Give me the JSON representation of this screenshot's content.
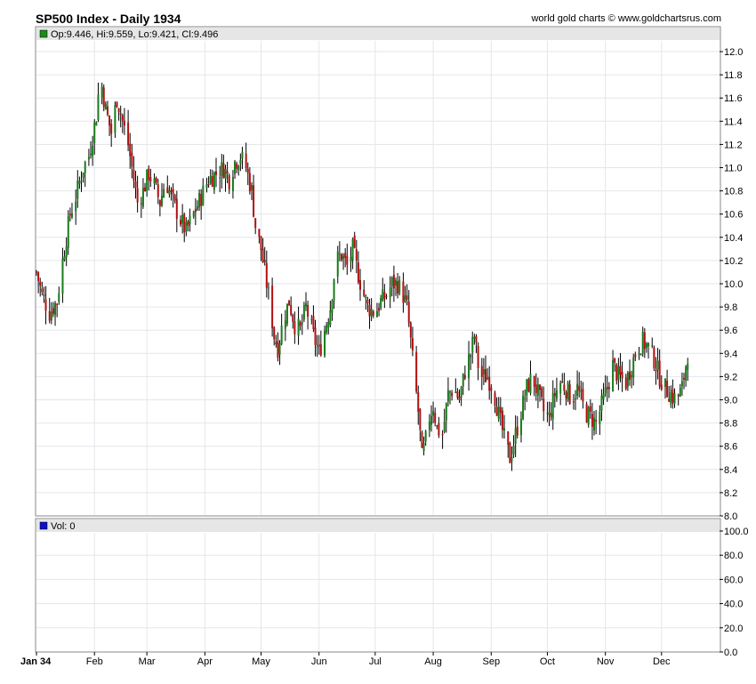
{
  "header": {
    "title": "SP500 Index - Daily 1934",
    "credit": "world gold charts © www.goldchartsrus.com"
  },
  "colors": {
    "up": "#1a7a1a",
    "down": "#b01010",
    "wick": "#000000",
    "grid": "#e3e6ea",
    "legend_bg": "#e6e6e6",
    "price_marker": "#1a8a1a",
    "vol_marker": "#1010cc"
  },
  "chart_data": [
    {
      "type": "candlestick",
      "legend": "Op:9.446, Hi:9.559, Lo:9.421, Cl:9.496",
      "ylim": [
        8.0,
        12.0
      ],
      "y_ticks": [
        "12.0",
        "11.8",
        "11.6",
        "11.4",
        "11.2",
        "11.0",
        "10.8",
        "10.6",
        "10.4",
        "10.2",
        "10.0",
        "9.8",
        "9.6",
        "9.4",
        "9.2",
        "9.0",
        "8.8",
        "8.6",
        "8.4",
        "8.2",
        "8.0"
      ],
      "x_ticks": [
        "Jan 34",
        "Feb",
        "Mar",
        "Apr",
        "May",
        "Jun",
        "Jul",
        "Aug",
        "Sep",
        "Oct",
        "Nov",
        "Dec"
      ],
      "x_tick_days": [
        1,
        32,
        60,
        91,
        121,
        152,
        182,
        213,
        244,
        274,
        305,
        335
      ],
      "x_range_days": [
        1,
        366
      ],
      "closes": [
        [
          1,
          10.1
        ],
        [
          4,
          9.9
        ],
        [
          8,
          9.75
        ],
        [
          12,
          9.85
        ],
        [
          15,
          10.2
        ],
        [
          19,
          10.6
        ],
        [
          22,
          10.75
        ],
        [
          26,
          11.0
        ],
        [
          29,
          11.1
        ],
        [
          33,
          11.45
        ],
        [
          35,
          11.8
        ],
        [
          38,
          11.5
        ],
        [
          41,
          11.3
        ],
        [
          44,
          11.6
        ],
        [
          47,
          11.4
        ],
        [
          50,
          11.2
        ],
        [
          53,
          10.9
        ],
        [
          55,
          10.7
        ],
        [
          58,
          10.8
        ],
        [
          61,
          10.95
        ],
        [
          64,
          10.85
        ],
        [
          67,
          10.7
        ],
        [
          70,
          10.9
        ],
        [
          74,
          10.7
        ],
        [
          78,
          10.55
        ],
        [
          81,
          10.45
        ],
        [
          85,
          10.6
        ],
        [
          89,
          10.75
        ],
        [
          93,
          10.9
        ],
        [
          97,
          10.95
        ],
        [
          101,
          11.0
        ],
        [
          104,
          10.9
        ],
        [
          107,
          11.05
        ],
        [
          110,
          11.1
        ],
        [
          113,
          11.0
        ],
        [
          116,
          10.8
        ],
        [
          118,
          10.5
        ],
        [
          121,
          10.3
        ],
        [
          124,
          10.0
        ],
        [
          126,
          9.8
        ],
        [
          128,
          9.55
        ],
        [
          130,
          9.45
        ],
        [
          133,
          9.7
        ],
        [
          136,
          9.85
        ],
        [
          139,
          9.65
        ],
        [
          142,
          9.6
        ],
        [
          145,
          9.8
        ],
        [
          149,
          9.55
        ],
        [
          152,
          9.4
        ],
        [
          155,
          9.6
        ],
        [
          158,
          9.8
        ],
        [
          161,
          10.2
        ],
        [
          164,
          10.25
        ],
        [
          167,
          10.15
        ],
        [
          170,
          10.3
        ],
        [
          172,
          10.15
        ],
        [
          175,
          9.95
        ],
        [
          178,
          9.8
        ],
        [
          182,
          9.75
        ],
        [
          185,
          9.85
        ],
        [
          188,
          9.9
        ],
        [
          191,
          10.0
        ],
        [
          194,
          10.0
        ],
        [
          197,
          9.9
        ],
        [
          199,
          9.8
        ],
        [
          201,
          9.5
        ],
        [
          203,
          9.2
        ],
        [
          205,
          8.9
        ],
        [
          207,
          8.5
        ],
        [
          209,
          8.65
        ],
        [
          211,
          8.85
        ],
        [
          213,
          8.95
        ],
        [
          215,
          8.75
        ],
        [
          218,
          8.7
        ],
        [
          221,
          9.05
        ],
        [
          224,
          9.1
        ],
        [
          227,
          9.0
        ],
        [
          230,
          9.25
        ],
        [
          233,
          9.4
        ],
        [
          235,
          9.55
        ],
        [
          237,
          9.3
        ],
        [
          239,
          9.2
        ],
        [
          242,
          9.2
        ],
        [
          245,
          9.1
        ],
        [
          247,
          8.95
        ],
        [
          249,
          8.8
        ],
        [
          252,
          8.6
        ],
        [
          254,
          8.5
        ],
        [
          257,
          8.7
        ],
        [
          260,
          8.9
        ],
        [
          263,
          9.1
        ],
        [
          266,
          9.2
        ],
        [
          269,
          9.05
        ],
        [
          272,
          8.9
        ],
        [
          275,
          8.85
        ],
        [
          278,
          9.05
        ],
        [
          281,
          9.15
        ],
        [
          284,
          9.1
        ],
        [
          287,
          9.0
        ],
        [
          290,
          9.1
        ],
        [
          294,
          8.9
        ],
        [
          297,
          8.85
        ],
        [
          300,
          8.8
        ],
        [
          303,
          8.95
        ],
        [
          306,
          9.1
        ],
        [
          309,
          9.3
        ],
        [
          312,
          9.2
        ],
        [
          316,
          9.15
        ],
        [
          319,
          9.3
        ],
        [
          322,
          9.45
        ],
        [
          325,
          9.5
        ],
        [
          328,
          9.45
        ],
        [
          331,
          9.35
        ],
        [
          334,
          9.2
        ],
        [
          337,
          9.1
        ],
        [
          340,
          9.05
        ],
        [
          343,
          9.0
        ],
        [
          346,
          9.1
        ],
        [
          348,
          9.3
        ],
        [
          350,
          9.496
        ]
      ]
    },
    {
      "type": "bar",
      "legend": "Vol: 0",
      "ylim": [
        0,
        100
      ],
      "y_ticks": [
        "100.0",
        "80.0",
        "60.0",
        "40.0",
        "20.0",
        "0.0"
      ],
      "values": []
    }
  ]
}
